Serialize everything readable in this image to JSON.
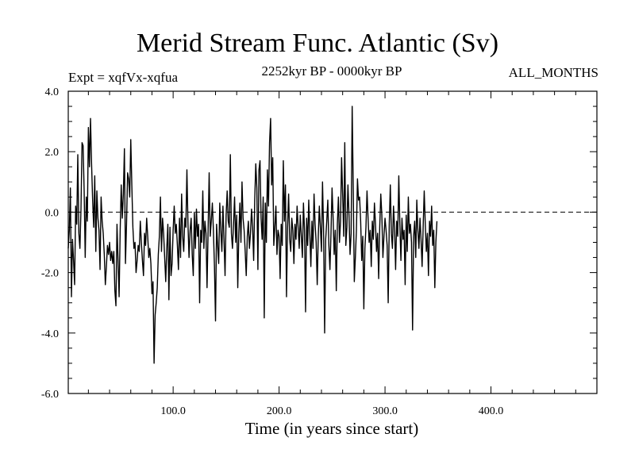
{
  "chart_data": {
    "type": "line",
    "title": "Merid Stream Func. Atlantic (Sv)",
    "subtitle_left": "Expt = xqfVx-xqfua",
    "subtitle_center": "2252kyr BP - 0000kyr BP",
    "subtitle_right": "ALL_MONTHS",
    "xlabel": "Time (in years since start)",
    "ylabel": "",
    "xlim": [
      1,
      500
    ],
    "ylim": [
      -6,
      4
    ],
    "xticks": [
      100,
      200,
      300,
      400
    ],
    "xtick_labels": [
      "100.0",
      "200.0",
      "300.0",
      "400.0"
    ],
    "yticks": [
      4,
      2,
      0,
      -2,
      -4,
      -6
    ],
    "ytick_labels": [
      "4.0",
      "2.0",
      "0.0",
      "-2.0",
      "-4.0",
      "-6.0"
    ],
    "zero_line": true,
    "series": [
      {
        "name": "Merid Stream Func. Atlantic",
        "x_start": 1,
        "x_step": 1,
        "values": [
          -1.2,
          -0.6,
          0.8,
          -2.8,
          -0.9,
          -1.6,
          -2.4,
          0.2,
          -0.4,
          1.9,
          -0.7,
          -1.2,
          0.1,
          2.3,
          2.2,
          0.7,
          -1.5,
          0.5,
          -0.3,
          2.8,
          1.5,
          3.1,
          1.6,
          0.4,
          -0.5,
          1.2,
          -1.3,
          0.7,
          -0.2,
          -0.6,
          -1.9,
          0.5,
          -0.3,
          -0.7,
          -1.4,
          -2.4,
          -1.8,
          -1.1,
          -1.4,
          -1.0,
          -1.6,
          -1.3,
          -1.7,
          -1.3,
          -2.6,
          -3.1,
          -0.4,
          -1.6,
          -2.8,
          -0.6,
          0.9,
          -0.2,
          0.6,
          2.1,
          -1.7,
          -0.4,
          1.3,
          1.1,
          0.5,
          2.4,
          0.9,
          -0.5,
          -1.2,
          -1.0,
          -2.0,
          -1.6,
          -1.1,
          -1.3,
          -0.3,
          -1.0,
          -1.6,
          -2.1,
          -0.7,
          -1.1,
          -0.2,
          -0.8,
          -1.5,
          -1.2,
          -1.7,
          -2.7,
          -2.3,
          -5.0,
          -3.4,
          -3.0,
          -2.5,
          -1.4,
          -0.8,
          0.5,
          -1.3,
          -0.2,
          -0.7,
          -1.5,
          -2.3,
          -1.2,
          -0.4,
          -2.9,
          -0.5,
          -2.1,
          -1.7,
          -0.6,
          0.2,
          -0.7,
          -0.4,
          -1.1,
          -1.9,
          -0.2,
          -1.5,
          0.6,
          -0.8,
          -1.3,
          -0.2,
          -0.5,
          1.4,
          -0.4,
          -1.5,
          -0.6,
          -0.2,
          -1.4,
          -2.1,
          0.0,
          -1.2,
          0.1,
          -0.8,
          -0.4,
          -3.0,
          -0.6,
          -1.0,
          0.7,
          -1.2,
          -0.3,
          -0.7,
          -2.5,
          -0.6,
          1.3,
          -0.8,
          -0.3,
          0.3,
          -0.6,
          -1.8,
          -3.6,
          -0.4,
          -1.1,
          -1.7,
          0.3,
          -0.6,
          -1.3,
          0.2,
          -0.9,
          -2.1,
          -0.1,
          0.7,
          -0.3,
          -0.5,
          1.9,
          -0.7,
          -1.2,
          -0.4,
          0.5,
          -1.0,
          -0.1,
          -2.5,
          -0.7,
          0.3,
          -1.0,
          1.0,
          -0.2,
          -0.6,
          -1.3,
          -2.1,
          -0.8,
          -0.3,
          -1.2,
          -0.7,
          0.1,
          -0.5,
          -1.6,
          0.4,
          1.6,
          0.8,
          -1.9,
          1.4,
          1.7,
          -0.2,
          -0.9,
          0.5,
          -3.5,
          0.3,
          -1.0,
          1.4,
          0.2,
          2.3,
          3.1,
          0.9,
          1.8,
          -1.1,
          -0.5,
          0.2,
          -1.4,
          -0.6,
          -0.8,
          -2.2,
          -0.4,
          -1.1,
          1.7,
          -0.3,
          0.9,
          -2.8,
          -0.5,
          0.6,
          -0.9,
          -1.3,
          -0.2,
          -0.6,
          -1.7,
          -0.4,
          -0.9,
          0.2,
          -0.5,
          -1.2,
          -0.1,
          -0.8,
          -1.5,
          0.3,
          -0.6,
          -3.3,
          -0.2,
          -1.1,
          0.4,
          -0.7,
          -1.8,
          -0.3,
          -1.2,
          0.6,
          -0.4,
          -1.0,
          -2.4,
          -0.8,
          0.2,
          -0.5,
          -1.3,
          1.0,
          -0.6,
          -4.0,
          -0.9,
          -0.3,
          0.4,
          -1.1,
          -1.9,
          -0.7,
          0.8,
          -0.2,
          -1.4,
          -0.6,
          -2.6,
          -0.4,
          0.5,
          -1.0,
          -0.3,
          1.8,
          0.6,
          -0.8,
          2.3,
          -1.1,
          -0.5,
          0.9,
          -0.1,
          -1.4,
          -0.7,
          3.5,
          0.8,
          -2.3,
          -1.5,
          -0.6,
          1.1,
          0.4,
          0.5,
          -0.3,
          -1.6,
          -0.8,
          -3.2,
          -1.2,
          -0.5,
          0.7,
          -0.2,
          -1.0,
          -0.6,
          -1.8,
          -0.3,
          -0.9,
          0.3,
          -0.4,
          -1.3,
          -0.7,
          -2.2,
          -0.5,
          0.6,
          -0.1,
          -1.5,
          -0.8,
          -0.2,
          -0.6,
          -1.1,
          -3.0,
          -0.4,
          0.9,
          -0.7,
          -1.2,
          0.2,
          -0.5,
          -1.9,
          -0.3,
          -0.8,
          1.2,
          -0.4,
          -1.6,
          -0.2,
          -0.9,
          -0.6,
          -2.4,
          -0.1,
          -1.3,
          0.5,
          -0.7,
          -0.4,
          -1.0,
          -3.9,
          -0.8,
          -0.3,
          -1.5,
          0.4,
          -0.6,
          -1.2,
          -0.2,
          -0.9,
          -1.8,
          -0.5,
          0.7,
          -0.4,
          -1.3,
          -0.7,
          -2.1,
          -0.3,
          -0.8,
          0.2,
          -1.1,
          -0.6,
          -2.5,
          -1.0,
          -0.3
        ]
      }
    ]
  }
}
